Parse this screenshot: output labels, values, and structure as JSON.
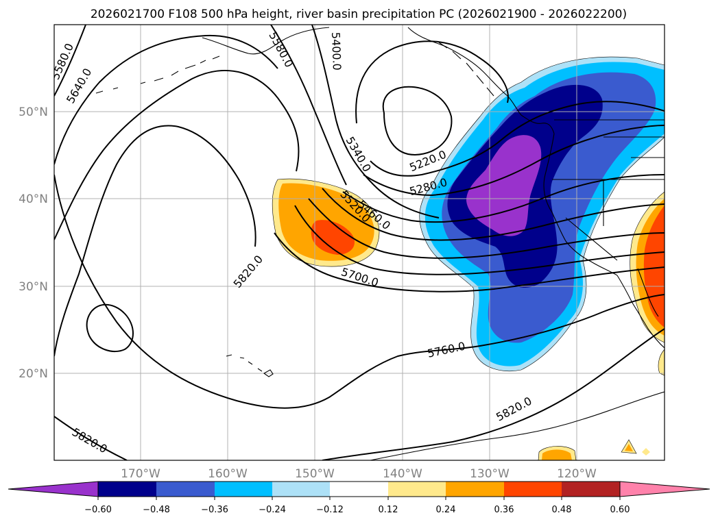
{
  "title": "2026021700 F108 500 hPa height, river basin precipitation PC (2026021900 - 2026022200)",
  "map": {
    "lon_ticks": [
      "170°W",
      "160°W",
      "150°W",
      "140°W",
      "130°W",
      "120°W"
    ],
    "lat_ticks": [
      "50°N",
      "40°N",
      "30°N",
      "20°N"
    ],
    "contour_labels": [
      "5580.0",
      "5640.0",
      "5580.0",
      "5400.0",
      "5340.0",
      "5220.0",
      "5280.0",
      "5520.0",
      "5460.0",
      "5700.0",
      "5820.0",
      "5760.0",
      "5820.0",
      "5820.0"
    ]
  },
  "colorbar": {
    "ticks": [
      "−0.60",
      "−0.48",
      "−0.36",
      "−0.24",
      "−0.12",
      "0.12",
      "0.24",
      "0.36",
      "0.48",
      "0.60"
    ],
    "colors": [
      "#9932CC",
      "#00008B",
      "#3A5BCF",
      "#00BFFF",
      "#ADE1F7",
      "#FFFFFF",
      "#FFE98C",
      "#FFA500",
      "#FF4500",
      "#B22222",
      "#FF82AB"
    ]
  },
  "fill_colors": {
    "neg_strong": "#9932CC",
    "neg_3": "#00008B",
    "neg_2": "#3A5BCF",
    "neg_1": "#00BFFF",
    "neg_0": "#ADE1F7",
    "pos_0": "#FFE98C",
    "pos_1": "#FFA500",
    "pos_2": "#FF4500"
  }
}
